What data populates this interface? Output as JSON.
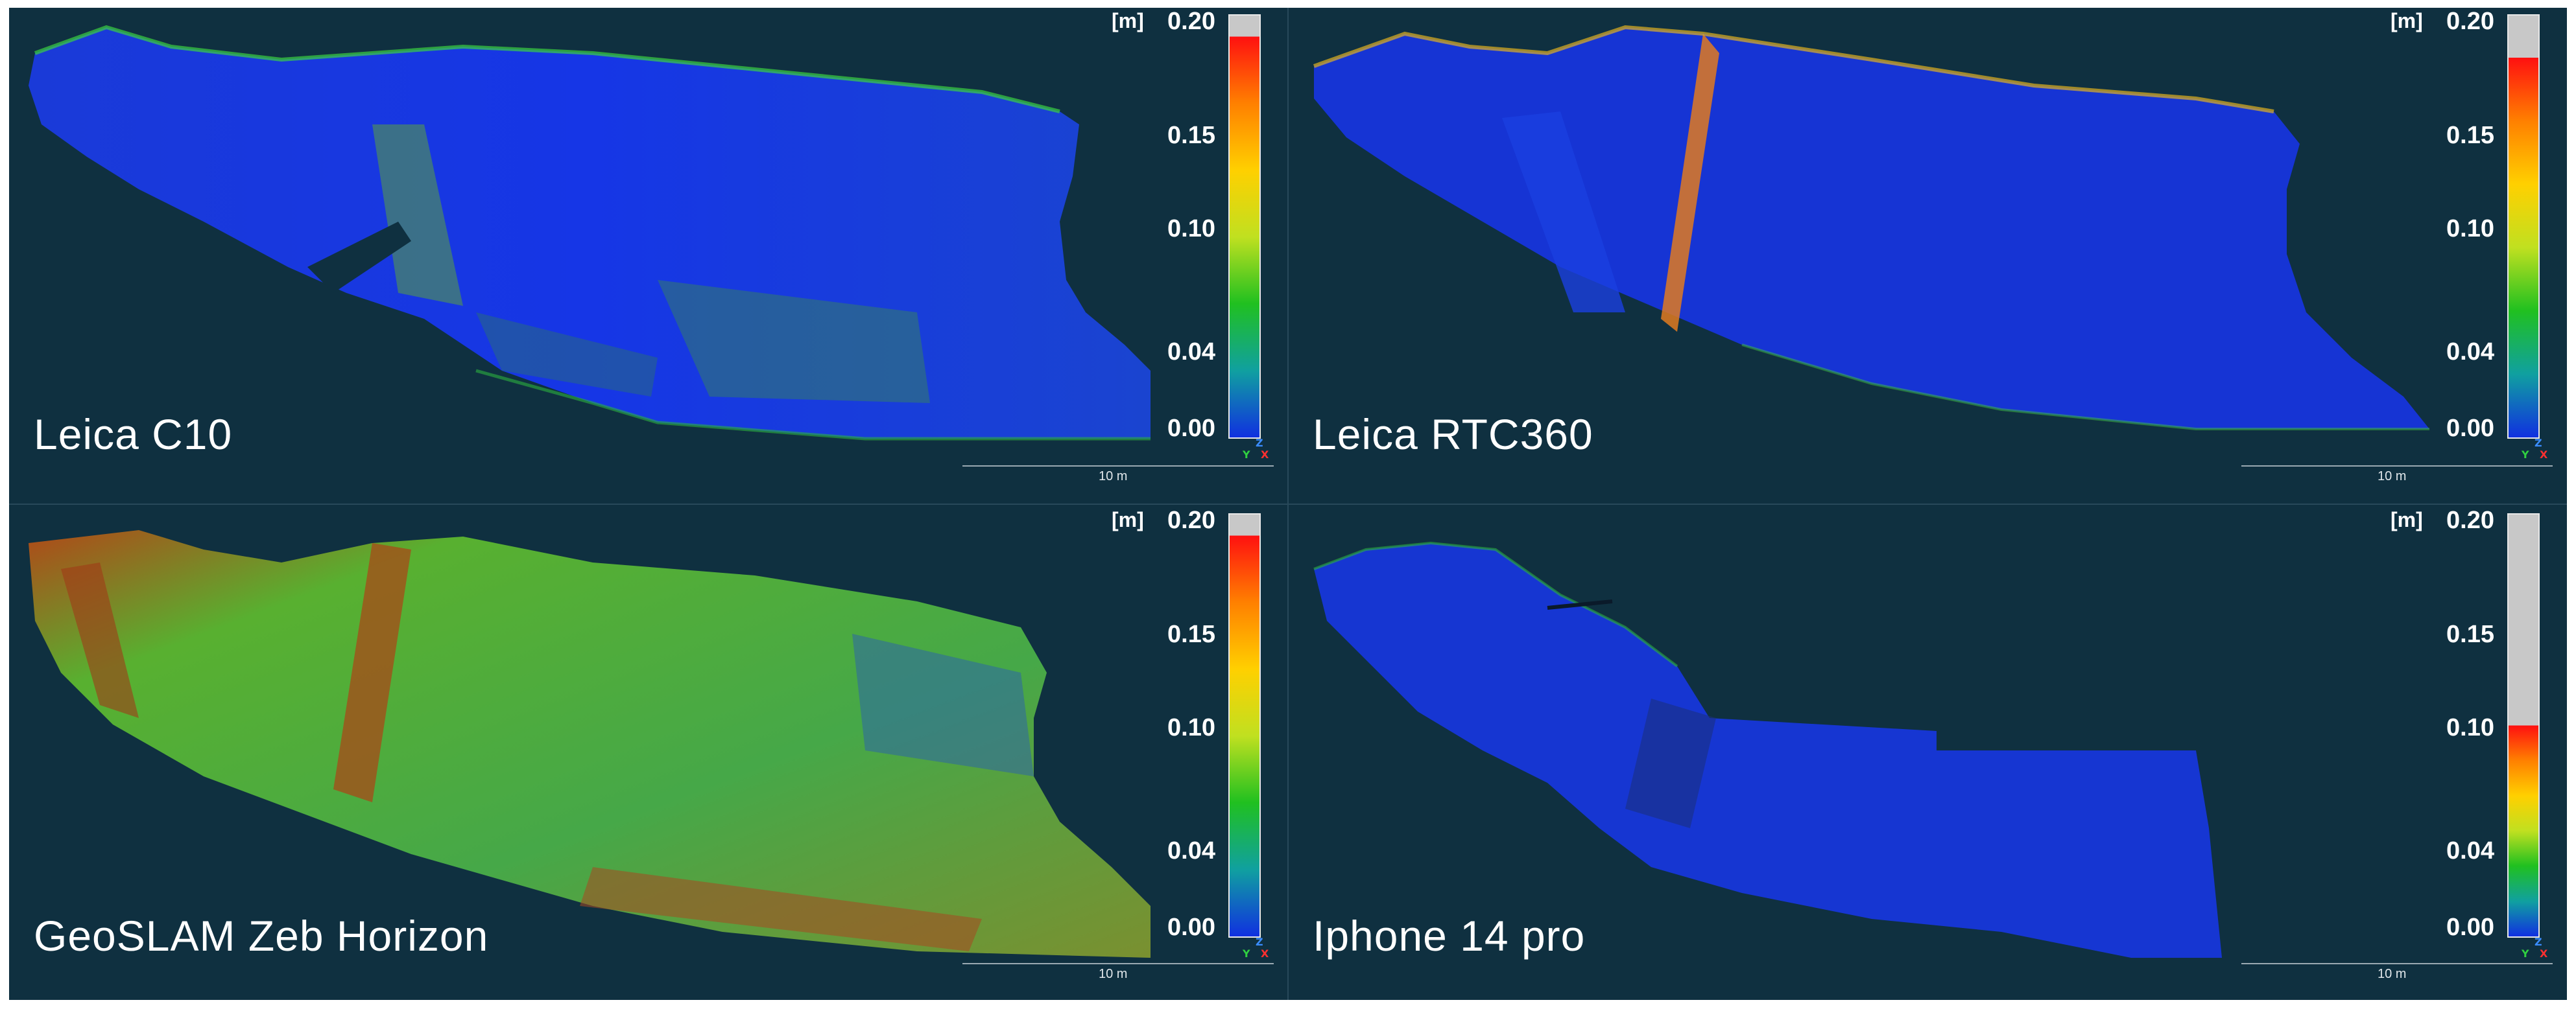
{
  "panels": [
    {
      "caption": "Leica C10",
      "unit": "[m]",
      "ticks": [
        "0.20",
        "0.15",
        "0.10",
        "0.04",
        "0.00"
      ],
      "scale": "10 m",
      "axes": {
        "z": "Z",
        "y": "Y",
        "x": "X"
      },
      "max_value": 0.19
    },
    {
      "caption": "Leica RTC360",
      "unit": "[m]",
      "ticks": [
        "0.20",
        "0.15",
        "0.10",
        "0.04",
        "0.00"
      ],
      "scale": "10 m",
      "axes": {
        "z": "Z",
        "y": "Y",
        "x": "X"
      },
      "max_value": 0.18
    },
    {
      "caption": "GeoSLAM Zeb Horizon",
      "unit": "[m]",
      "ticks": [
        "0.20",
        "0.15",
        "0.10",
        "0.04",
        "0.00"
      ],
      "scale": "10 m",
      "axes": {
        "z": "Z",
        "y": "Y",
        "x": "X"
      },
      "max_value": 0.19
    },
    {
      "caption": "Iphone 14 pro",
      "unit": "[m]",
      "ticks": [
        "0.20",
        "0.15",
        "0.10",
        "0.04",
        "0.00"
      ],
      "scale": "10 m",
      "axes": {
        "z": "Z",
        "y": "Y",
        "x": "X"
      },
      "max_value": 0.1
    }
  ],
  "colors": {
    "background": "#0f3040",
    "low": "#1030e0",
    "mid": "#20c020",
    "high": "#ff1010",
    "overflow": "#c8c8c8"
  }
}
